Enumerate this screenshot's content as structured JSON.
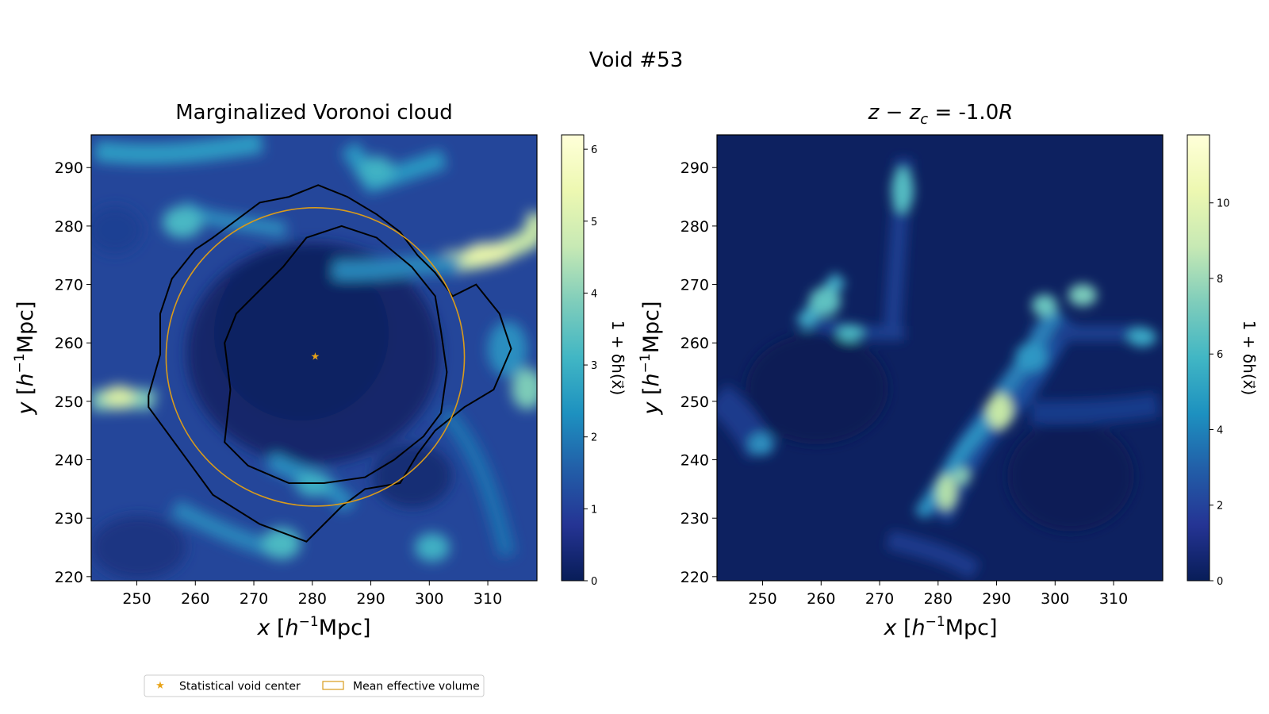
{
  "figure": {
    "suptitle": "Void #53"
  },
  "panels": [
    {
      "title": "Marginalized Voronoi cloud",
      "colorbar_label": "1 + δh(x⃗)"
    },
    {
      "title_pre": "z − z",
      "title_sub": "c",
      "title_mid": " = -1.0",
      "title_post": "R",
      "colorbar_label": "1 + δh(x⃗)"
    }
  ],
  "legend": {
    "entries": [
      "Statistical void center",
      "Mean effective volume"
    ],
    "center_color": "#e8a317",
    "volume_color": "#d99b1b"
  },
  "chart_data": [
    {
      "type": "heatmap",
      "title": "Marginalized Voronoi cloud",
      "xlabel": "x [h⁻¹Mpc]",
      "ylabel": "y [h⁻¹Mpc]",
      "xlim": [
        242.2,
        318.4
      ],
      "ylim": [
        219.3,
        295.6
      ],
      "x_ticks": [
        250,
        260,
        270,
        280,
        290,
        300,
        310
      ],
      "y_ticks": [
        220,
        230,
        240,
        250,
        260,
        270,
        280,
        290
      ],
      "colorbar": {
        "label": "1 + δh(x⃗)",
        "range": [
          0,
          6.2
        ],
        "ticks": [
          0,
          1,
          2,
          3,
          4,
          5,
          6
        ],
        "colormap": "YlGnBu"
      },
      "void_center": [
        280.5,
        257.6
      ],
      "effective_volume_circle": {
        "center": [
          280.5,
          257.6
        ],
        "radius": 25.5
      },
      "outer_contour": [
        [
          252,
          251
        ],
        [
          252,
          249
        ],
        [
          263,
          234
        ],
        [
          271,
          229
        ],
        [
          279,
          226
        ],
        [
          285,
          232
        ],
        [
          289,
          235
        ],
        [
          295,
          236
        ],
        [
          298,
          241
        ],
        [
          301,
          245
        ],
        [
          306,
          249
        ],
        [
          311,
          252
        ],
        [
          314,
          259
        ],
        [
          312,
          265
        ],
        [
          308,
          270
        ],
        [
          304,
          268
        ],
        [
          301,
          272
        ],
        [
          298,
          275
        ],
        [
          295,
          279
        ],
        [
          291,
          282
        ],
        [
          286,
          285
        ],
        [
          281,
          287
        ],
        [
          276,
          285
        ],
        [
          271,
          284
        ],
        [
          267,
          281
        ],
        [
          263,
          278
        ],
        [
          260,
          276
        ],
        [
          256,
          271
        ],
        [
          254,
          265
        ],
        [
          254,
          258
        ]
      ],
      "inner_contour": [
        [
          266,
          252
        ],
        [
          265,
          243
        ],
        [
          269,
          239
        ],
        [
          276,
          236
        ],
        [
          282,
          236
        ],
        [
          289,
          237
        ],
        [
          294,
          240
        ],
        [
          299,
          244
        ],
        [
          302,
          248
        ],
        [
          303,
          255
        ],
        [
          302,
          262
        ],
        [
          301,
          268
        ],
        [
          297,
          273
        ],
        [
          291,
          278
        ],
        [
          285,
          280
        ],
        [
          279,
          278
        ],
        [
          275,
          273
        ],
        [
          271,
          269
        ],
        [
          267,
          265
        ],
        [
          265,
          260
        ]
      ]
    },
    {
      "type": "heatmap",
      "title": "z − zc = -1.0R",
      "xlabel": "x [h⁻¹Mpc]",
      "ylabel": "y [h⁻¹Mpc]",
      "xlim": [
        242.2,
        318.4
      ],
      "ylim": [
        219.3,
        295.6
      ],
      "x_ticks": [
        250,
        260,
        270,
        280,
        290,
        300,
        310
      ],
      "y_ticks": [
        220,
        230,
        240,
        250,
        260,
        270,
        280,
        290
      ],
      "colorbar": {
        "label": "1 + δh(x⃗)",
        "range": [
          0,
          11.8
        ],
        "ticks": [
          0,
          2,
          4,
          6,
          8,
          10
        ],
        "colormap": "YlGnBu"
      }
    }
  ]
}
